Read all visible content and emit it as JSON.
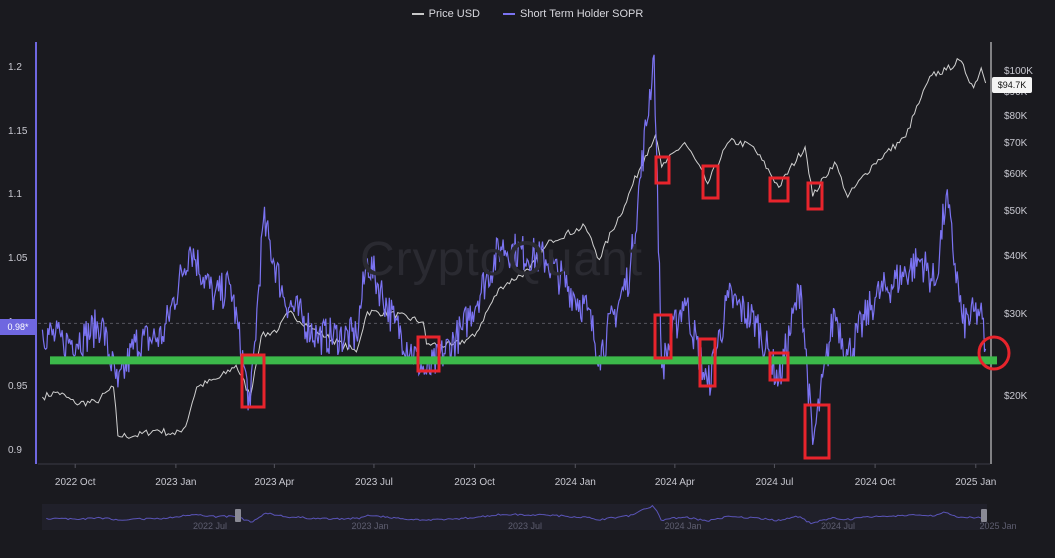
{
  "chart_data": {
    "type": "line",
    "legend": [
      {
        "name": "Price USD",
        "color": "#c8c8c8"
      },
      {
        "name": "Short Term Holder SOPR",
        "color": "#7b73f2"
      }
    ],
    "x_ticks": [
      "2022 Oct",
      "2023 Jan",
      "2023 Apr",
      "2023 Jul",
      "2023 Oct",
      "2024 Jan",
      "2024 Apr",
      "2024 Jul",
      "2024 Oct",
      "2025 Jan"
    ],
    "y_left_ticks": [
      "0.9",
      "0.95",
      "1",
      "1.05",
      "1.1",
      "1.15",
      "1.2"
    ],
    "y_left_range": [
      0.89,
      1.22
    ],
    "y_right_ticks": [
      "$20K",
      "$30K",
      "$40K",
      "$50K",
      "$60K",
      "$70K",
      "$80K",
      "$90K",
      "$100K"
    ],
    "y_right_scale": "log",
    "current_sopr_label": "0.98*",
    "current_price_label": "$94.7K",
    "watermark": "CryptoQuant",
    "navigator_labels": [
      "2022 Jul",
      "2023 Jan",
      "2023 Jul",
      "2024 Jan",
      "2024 Jul",
      "2025 Jan"
    ],
    "price_series": {
      "name": "Price USD",
      "points": [
        [
          "2022-09-01",
          20000
        ],
        [
          "2022-09-15",
          20500
        ],
        [
          "2022-10-01",
          19400
        ],
        [
          "2022-10-20",
          19500
        ],
        [
          "2022-11-05",
          21000
        ],
        [
          "2022-11-09",
          16500
        ],
        [
          "2022-11-25",
          16500
        ],
        [
          "2022-12-15",
          17000
        ],
        [
          "2022-12-31",
          16600
        ],
        [
          "2023-01-10",
          17300
        ],
        [
          "2023-01-20",
          21000
        ],
        [
          "2023-02-10",
          22000
        ],
        [
          "2023-02-25",
          23400
        ],
        [
          "2023-03-10",
          20000
        ],
        [
          "2023-03-20",
          27000
        ],
        [
          "2023-04-05",
          28000
        ],
        [
          "2023-04-14",
          30400
        ],
        [
          "2023-05-10",
          27600
        ],
        [
          "2023-06-15",
          25000
        ],
        [
          "2023-06-25",
          30500
        ],
        [
          "2023-07-15",
          30300
        ],
        [
          "2023-08-15",
          29000
        ],
        [
          "2023-08-18",
          26000
        ],
        [
          "2023-09-10",
          25800
        ],
        [
          "2023-10-01",
          27000
        ],
        [
          "2023-10-25",
          34500
        ],
        [
          "2023-11-20",
          37500
        ],
        [
          "2023-12-10",
          43500
        ],
        [
          "2024-01-10",
          46500
        ],
        [
          "2024-01-23",
          39500
        ],
        [
          "2024-02-15",
          51500
        ],
        [
          "2024-03-05",
          66000
        ],
        [
          "2024-03-14",
          73000
        ],
        [
          "2024-03-20",
          62500
        ],
        [
          "2024-04-10",
          70500
        ],
        [
          "2024-05-01",
          57500
        ],
        [
          "2024-05-21",
          71000
        ],
        [
          "2024-06-10",
          69500
        ],
        [
          "2024-07-05",
          56500
        ],
        [
          "2024-07-29",
          69000
        ],
        [
          "2024-08-05",
          54000
        ],
        [
          "2024-08-25",
          64000
        ],
        [
          "2024-09-06",
          53800
        ],
        [
          "2024-09-30",
          63500
        ],
        [
          "2024-10-29",
          72500
        ],
        [
          "2024-11-12",
          88000
        ],
        [
          "2024-11-22",
          98500
        ],
        [
          "2024-12-05",
          101000
        ],
        [
          "2024-12-17",
          106000
        ],
        [
          "2024-12-30",
          92500
        ],
        [
          "2025-01-06",
          102000
        ],
        [
          "2025-01-10",
          94700
        ]
      ]
    },
    "sopr_series": {
      "name": "Short Term Holder SOPR",
      "points": [
        [
          "2022-09-01",
          0.995
        ],
        [
          "2022-09-20",
          0.985
        ],
        [
          "2022-10-10",
          0.99
        ],
        [
          "2022-10-25",
          1.0
        ],
        [
          "2022-11-09",
          0.95
        ],
        [
          "2022-11-25",
          0.985
        ],
        [
          "2022-12-20",
          0.99
        ],
        [
          "2023-01-14",
          1.06
        ],
        [
          "2023-02-05",
          1.02
        ],
        [
          "2023-02-20",
          1.03
        ],
        [
          "2023-03-10",
          0.935
        ],
        [
          "2023-03-22",
          1.08
        ],
        [
          "2023-04-10",
          1.02
        ],
        [
          "2023-05-10",
          0.99
        ],
        [
          "2023-06-15",
          0.99
        ],
        [
          "2023-06-25",
          1.05
        ],
        [
          "2023-07-20",
          1.0
        ],
        [
          "2023-08-18",
          0.96
        ],
        [
          "2023-09-20",
          0.995
        ],
        [
          "2023-10-25",
          1.06
        ],
        [
          "2023-12-05",
          1.05
        ],
        [
          "2024-01-12",
          1.01
        ],
        [
          "2024-01-23",
          0.975
        ],
        [
          "2024-02-20",
          1.04
        ],
        [
          "2024-03-13",
          1.21
        ],
        [
          "2024-03-20",
          0.965
        ],
        [
          "2024-04-10",
          1.02
        ],
        [
          "2024-05-01",
          0.95
        ],
        [
          "2024-05-20",
          1.02
        ],
        [
          "2024-06-15",
          1.0
        ],
        [
          "2024-07-05",
          0.955
        ],
        [
          "2024-07-25",
          1.03
        ],
        [
          "2024-08-05",
          0.905
        ],
        [
          "2024-08-25",
          1.01
        ],
        [
          "2024-09-06",
          0.975
        ],
        [
          "2024-10-01",
          1.02
        ],
        [
          "2024-11-12",
          1.05
        ],
        [
          "2024-11-25",
          1.03
        ],
        [
          "2024-12-05",
          1.1
        ],
        [
          "2024-12-20",
          1.0
        ],
        [
          "2025-01-05",
          1.01
        ],
        [
          "2025-01-10",
          0.98
        ]
      ]
    },
    "annotations": {
      "support_line_level": 0.971,
      "support_line_color": "#3cb94a",
      "highlight_color": "#e8242c"
    }
  }
}
